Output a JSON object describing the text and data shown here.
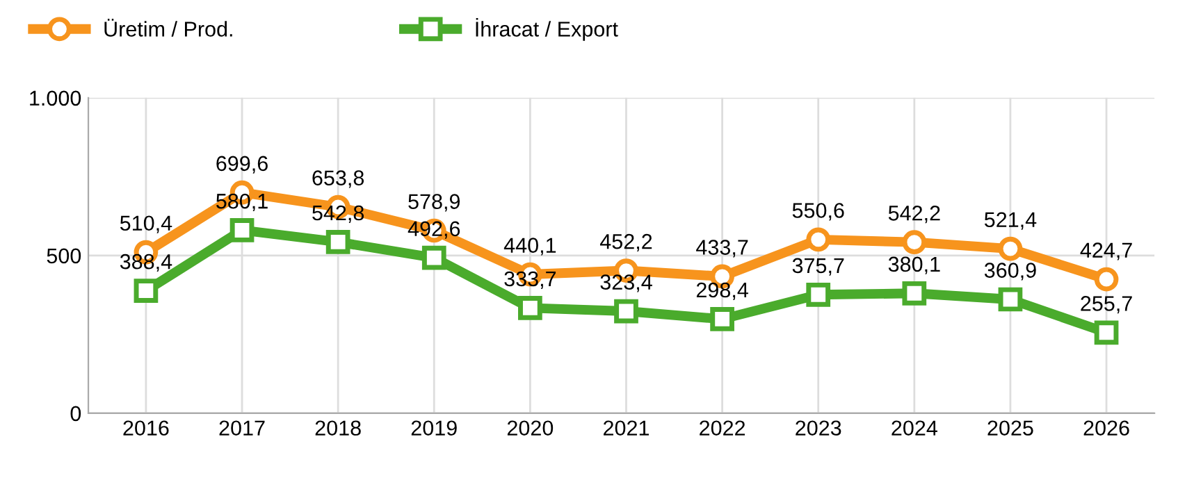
{
  "chart_data": {
    "type": "line",
    "categories": [
      "2016",
      "2017",
      "2018",
      "2019",
      "2020",
      "2021",
      "2022",
      "2023",
      "2024",
      "2025",
      "2026"
    ],
    "series": [
      {
        "name": "Üretim / Prod.",
        "color": "#f7941d",
        "marker": "circle",
        "values": [
          510.4,
          699.6,
          653.8,
          578.9,
          440.1,
          452.2,
          433.7,
          550.6,
          542.2,
          521.4,
          424.7
        ],
        "value_labels": [
          "510,4",
          "699,6",
          "653,8",
          "578,9",
          "440,1",
          "452,2",
          "433,7",
          "550,6",
          "542,2",
          "521,4",
          "424,7"
        ]
      },
      {
        "name": "İhracat / Export",
        "color": "#4aab2c",
        "marker": "square",
        "values": [
          388.4,
          580.1,
          542.8,
          492.6,
          333.7,
          323.4,
          298.4,
          375.7,
          380.1,
          360.9,
          255.7
        ],
        "value_labels": [
          "388,4",
          "580,1",
          "542,8",
          "492,6",
          "333,7",
          "323,4",
          "298,4",
          "375,7",
          "380,1",
          "360,9",
          "255,7"
        ]
      }
    ],
    "ylim": [
      0,
      1000
    ],
    "yticks": [
      0,
      500,
      {
        "value": 1000,
        "label": "1.000"
      }
    ],
    "grid": true,
    "legend": "top left",
    "line_style": "solid"
  }
}
